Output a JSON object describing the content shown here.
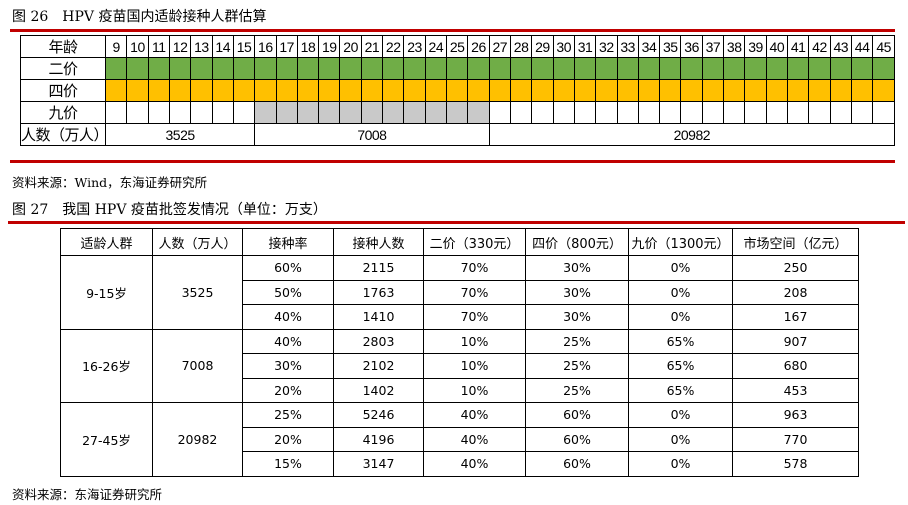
{
  "fig26": {
    "caption": "图 26　HPV 疫苗国内适龄接种人群估算",
    "row_labels": {
      "age": "年龄",
      "bivalent": "二价",
      "quadrivalent": "四价",
      "nonavalent": "九价",
      "population": "人数（万人）"
    },
    "ages": [
      9,
      10,
      11,
      12,
      13,
      14,
      15,
      16,
      17,
      18,
      19,
      20,
      21,
      22,
      23,
      24,
      25,
      26,
      27,
      28,
      29,
      30,
      31,
      32,
      33,
      34,
      35,
      36,
      37,
      38,
      39,
      40,
      41,
      42,
      43,
      44,
      45
    ],
    "bivalent_ages": "9-45",
    "quadrivalent_ages": "9-45",
    "nonavalent_ages": "16-26",
    "colors": {
      "bivalent": "#70ad47",
      "quadrivalent": "#ffc000",
      "nonavalent": "#c9c9c9"
    },
    "population": [
      {
        "label": "3525",
        "span": 7
      },
      {
        "label": "7008",
        "span": 11
      },
      {
        "label": "20982",
        "span": 19
      }
    ],
    "source": "资料来源：Wind，东海证券研究所"
  },
  "fig27": {
    "caption": "图 27　我国 HPV 疫苗批签发情况（单位：万支）",
    "headers": [
      "适龄人群",
      "人数（万人）",
      "接种率",
      "接种人数",
      "二价（330元）",
      "四价（800元）",
      "九价（1300元）",
      "市场空间（亿元）"
    ],
    "groups": [
      {
        "group": "9-15岁",
        "population": "3525",
        "rows": [
          [
            "60%",
            "2115",
            "70%",
            "30%",
            "0%",
            "250"
          ],
          [
            "50%",
            "1763",
            "70%",
            "30%",
            "0%",
            "208"
          ],
          [
            "40%",
            "1410",
            "70%",
            "30%",
            "0%",
            "167"
          ]
        ]
      },
      {
        "group": "16-26岁",
        "population": "7008",
        "rows": [
          [
            "40%",
            "2803",
            "10%",
            "25%",
            "65%",
            "907"
          ],
          [
            "30%",
            "2102",
            "10%",
            "25%",
            "65%",
            "680"
          ],
          [
            "20%",
            "1402",
            "10%",
            "25%",
            "65%",
            "453"
          ]
        ]
      },
      {
        "group": "27-45岁",
        "population": "20982",
        "rows": [
          [
            "25%",
            "5246",
            "40%",
            "60%",
            "0%",
            "963"
          ],
          [
            "20%",
            "4196",
            "40%",
            "60%",
            "0%",
            "770"
          ],
          [
            "15%",
            "3147",
            "40%",
            "60%",
            "0%",
            "578"
          ]
        ]
      }
    ],
    "source": "资料来源：东海证券研究所"
  }
}
